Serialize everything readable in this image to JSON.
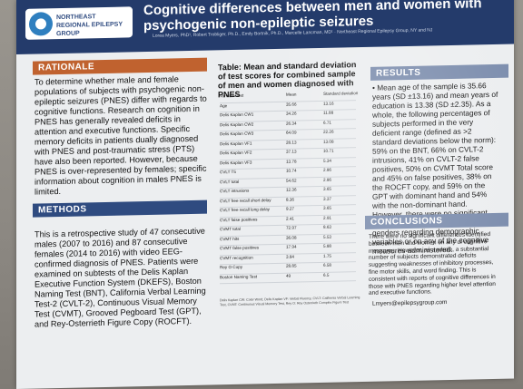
{
  "logo": {
    "text": "NORTHEAST REGIONAL EPILEPSY GROUP"
  },
  "title": "Cognitive differences between men and women with psychogenic non-epileptic seizures",
  "authors": "Lorea Myers, PhD¹, Robert Trobliger, Ph.D., Emily Bortnik, Ph.D., Marcelle Lancman, MD¹ · Northeast Regional Epilepsy Group, NY and NJ",
  "rationale": {
    "heading": "RATIONALE",
    "text": "To determine whether male and female populations of subjects with psychogenic non-epileptic seizures (PNES) differ with regards to cognitive functions. Research on cognition in PNES has generally revealed deficits in attention and executive functions. Specific memory deficits in patients dually diagnosed with PNES and post-traumatic stress (PTS) have also been reported. However, because PNES is over-represented by females; specific information about cognition in males PNES is limited."
  },
  "methods": {
    "heading": "METHODS",
    "text": "This is a retrospective study of 47 consecutive males (2007 to 2016) and 87 consecutive females (2014 to 2016) with video EEG-confirmed diagnosis of PNES. Patients were examined on subtests of the Delis Kaplan Executive Function System (DKEFS), Boston Naming Test (BNT), California Verbal Learning Test-2 (CVLT-2), Continuous Visual Memory Test (CVMT), Grooved Pegboard Test (GPT), and Rey-Osterrieth Figure Copy (ROCFT)."
  },
  "table": {
    "title": "Table: Mean and standard deviation of test scores for combined sample of men and women diagnosed with PNES",
    "header": [
      "Variable/Test",
      "Mean",
      "Standard deviation"
    ],
    "rows": [
      [
        "Age",
        "35.66",
        "13.16"
      ],
      [
        "Delis Kaplan CW1",
        "34.26",
        "11.88"
      ],
      [
        "Delis Kaplan CW2",
        "26.34",
        "6.71"
      ],
      [
        "Delis Kaplan CW3",
        "64.09",
        "22.26"
      ],
      [
        "Delis Kaplan VF1",
        "28.13",
        "13.08"
      ],
      [
        "Delis Kaplan VF2",
        "37.13",
        "10.71"
      ],
      [
        "Delis Kaplan VF3",
        "13.78",
        "5.34"
      ],
      [
        "CVLT T5",
        "10.74",
        "2.86"
      ],
      [
        "CVLT total",
        "54.62",
        "2.86"
      ],
      [
        "CVLT intrusions",
        "12.36",
        "3.65"
      ],
      [
        "CVLT free recall short delay",
        "8.36",
        "3.37"
      ],
      [
        "CVLT free recall long delay",
        "9.27",
        "3.65"
      ],
      [
        "CVLT false positives",
        "2.41",
        "2.91"
      ],
      [
        "CVMT total",
        "72.97",
        "8.63"
      ],
      [
        "CVMT hits",
        "36.08",
        "5.53"
      ],
      [
        "CVMT false positives",
        "17.94",
        "5.88"
      ],
      [
        "CVMT recognition",
        "3.84",
        "1.75"
      ],
      [
        "Rey O Copy",
        "28.85",
        "6.58"
      ],
      [
        "Boston Naming Test",
        "49",
        "6.5"
      ]
    ],
    "footnote": "Delis Kaplan CW: Color Word, Delis Kaplan VF: Verbal Fluency, CVLT: California Verbal Learning Test, CVMT: Continuous Visual Memory Test, Rey O: Rey Osterrieth Complex Figure Test"
  },
  "results": {
    "heading": "RESULTS",
    "text": "• Mean age of the sample is 35.66 years (SD ±13.16) and mean years of education is 13.38 (SD ±2.35). As a whole, the following percentages of subjects performed in the very deficient range (defined as >2 standard deviations below the norm): 59% on the BNT, 66% on CVLT-2 intrusions, 41% on CVLT-2 false positives, 50% on CVMT Total score and 45% on false positives, 38% on the ROCFT copy, and 59% on the GPT with dominant hand and 54% with the non-dominant hand. However, there were no significant differences identified between genders regarding demographic variables or on any of the cognitive measures administered."
  },
  "conclusions": {
    "heading": "CONCLUSIONS",
    "text": "There were no significant differences identified between men and women on any of cognitive measures. However, as a whole, a substantial number of subjects demonstrated deficits suggesting weaknesses of inhibitory processes, fine motor skills, and word finding. This is consistent with reports of cognitive differences in those with PNES regarding higher level attention and executive functions."
  },
  "email": "Lmyers@epilepsygroup.com"
}
